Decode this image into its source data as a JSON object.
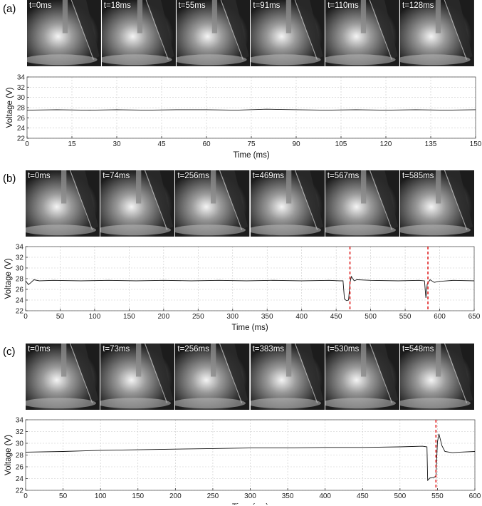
{
  "colors": {
    "trace": "#111111",
    "marker": "#e02020",
    "dip": "#3a4fb0",
    "grid": "#c8c8c8"
  },
  "panels": [
    {
      "letter": "(a)",
      "frames": [
        "t=0ms",
        "t=18ms",
        "t=55ms",
        "t=91ms",
        "t=110ms",
        "t=128ms"
      ],
      "chart_data": {
        "type": "line",
        "xlabel": "Time (ms)",
        "ylabel": "Voltage (V)",
        "xlim": [
          0,
          150
        ],
        "ylim": [
          22,
          34
        ],
        "xticks": [
          0,
          15,
          30,
          45,
          60,
          75,
          90,
          105,
          120,
          135,
          150
        ],
        "yticks": [
          22,
          24,
          26,
          28,
          30,
          32,
          34
        ],
        "grid": true,
        "series": [
          {
            "x": [
              0,
              10,
              20,
              30,
              40,
              50,
              60,
              70,
              80,
              90,
              100,
              110,
              120,
              130,
              140,
              150
            ],
            "y": [
              27.5,
              27.6,
              27.5,
              27.6,
              27.5,
              27.6,
              27.6,
              27.5,
              27.7,
              27.6,
              27.5,
              27.6,
              27.5,
              27.6,
              27.5,
              27.6
            ]
          }
        ],
        "markers": []
      }
    },
    {
      "letter": "(b)",
      "frames": [
        "t=0ms",
        "t=74ms",
        "t=256ms",
        "t=469ms",
        "t=567ms",
        "t=585ms"
      ],
      "chart_data": {
        "type": "line",
        "xlabel": "Time (ms)",
        "ylabel": "Voltage (V)",
        "xlim": [
          0,
          650
        ],
        "ylim": [
          22,
          34
        ],
        "xticks": [
          0,
          50,
          100,
          150,
          200,
          250,
          300,
          350,
          400,
          450,
          500,
          550,
          600,
          650
        ],
        "yticks": [
          22,
          24,
          26,
          28,
          30,
          32,
          34
        ],
        "grid": true,
        "series": [
          {
            "x": [
              0,
              4,
              8,
              12,
              20,
              40,
              80,
              120,
              160,
              200,
              240,
              280,
              320,
              360,
              400,
              440,
              455,
              460,
              462,
              465,
              468,
              470,
              472,
              476,
              480,
              500,
              540,
              570,
              578,
              580,
              582,
              586,
              592,
              600,
              620,
              650
            ],
            "y": [
              27.6,
              26.9,
              27.3,
              27.8,
              27.6,
              27.7,
              27.6,
              27.7,
              27.6,
              27.7,
              27.6,
              27.7,
              27.6,
              27.7,
              27.6,
              27.7,
              27.6,
              27.6,
              24.2,
              23.9,
              24.0,
              27.2,
              28.4,
              27.6,
              27.8,
              27.7,
              27.6,
              27.7,
              27.6,
              24.4,
              27.0,
              27.8,
              27.3,
              27.5,
              27.7,
              27.6
            ]
          }
        ],
        "markers": [
          470,
          583
        ]
      }
    },
    {
      "letter": "(c)",
      "frames": [
        "t=0ms",
        "t=73ms",
        "t=256ms",
        "t=383ms",
        "t=530ms",
        "t=548ms"
      ],
      "chart_data": {
        "type": "line",
        "xlabel": "Time (ms)",
        "ylabel": "Voltage (V)",
        "xlim": [
          0,
          600
        ],
        "ylim": [
          22,
          34
        ],
        "xticks": [
          0,
          50,
          100,
          150,
          200,
          250,
          300,
          350,
          400,
          450,
          500,
          550,
          600
        ],
        "yticks": [
          22,
          24,
          26,
          28,
          30,
          32,
          34
        ],
        "grid": true,
        "series": [
          {
            "x": [
              0,
              50,
              100,
              150,
              200,
              250,
              300,
              350,
              400,
              450,
              500,
              530,
              536,
              537,
              540,
              545,
              548,
              550,
              552,
              556,
              560,
              570,
              580,
              600
            ],
            "y": [
              28.5,
              28.6,
              28.8,
              28.9,
              29.0,
              29.1,
              29.2,
              29.2,
              29.3,
              29.3,
              29.4,
              29.5,
              29.4,
              23.7,
              24.1,
              24.2,
              24.4,
              30.2,
              31.6,
              29.6,
              28.6,
              28.4,
              28.5,
              28.6
            ]
          }
        ],
        "markers": [
          548
        ]
      }
    }
  ]
}
